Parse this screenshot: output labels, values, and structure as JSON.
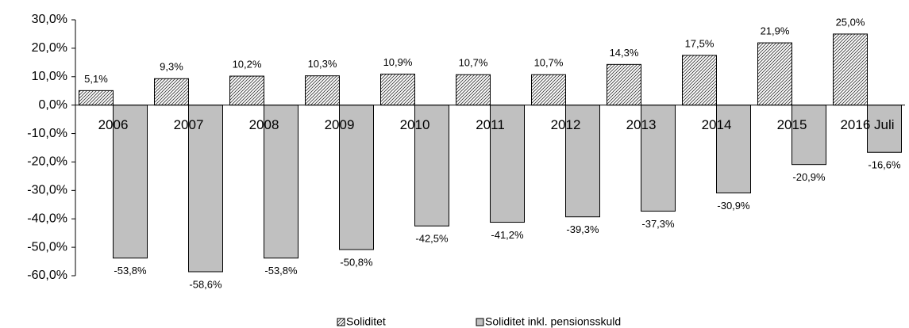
{
  "chart_data": {
    "type": "bar",
    "categories": [
      "2006",
      "2007",
      "2008",
      "2009",
      "2010",
      "2011",
      "2012",
      "2013",
      "2014",
      "2015",
      "2016 Juli"
    ],
    "series": [
      {
        "name": "Soliditet",
        "color": "#ffffff",
        "pattern": "diagonal-hatch",
        "values": [
          5.1,
          9.3,
          10.2,
          10.3,
          10.9,
          10.7,
          10.7,
          14.3,
          17.5,
          21.9,
          25.0
        ],
        "value_labels": [
          "5,1%",
          "9,3%",
          "10,2%",
          "10,3%",
          "10,9%",
          "10,7%",
          "10,7%",
          "14,3%",
          "17,5%",
          "21,9%",
          "25,0%"
        ]
      },
      {
        "name": "Soliditet inkl. pensionsskuld",
        "color": "#c0c0c0",
        "values": [
          -53.8,
          -58.6,
          -53.8,
          -50.8,
          -42.5,
          -41.2,
          -39.3,
          -37.3,
          -30.9,
          -20.9,
          -16.6
        ],
        "value_labels": [
          "-53,8%",
          "-58,6%",
          "-53,8%",
          "-50,8%",
          "-42,5%",
          "-41,2%",
          "-39,3%",
          "-37,3%",
          "-30,9%",
          "-20,9%",
          "-16,6%"
        ]
      }
    ],
    "ylim": [
      -60,
      30
    ],
    "yticks": [
      {
        "value": -60,
        "label": "-60,0%"
      },
      {
        "value": -50,
        "label": "-50,0%"
      },
      {
        "value": -40,
        "label": "-40,0%"
      },
      {
        "value": -30,
        "label": "-30,0%"
      },
      {
        "value": -20,
        "label": "-20,0%"
      },
      {
        "value": -10,
        "label": "-10,0%"
      },
      {
        "value": 0,
        "label": "0,0%"
      },
      {
        "value": 10,
        "label": "10,0%"
      },
      {
        "value": 20,
        "label": "20,0%"
      },
      {
        "value": 30,
        "label": "30,0%"
      }
    ],
    "grid": false,
    "legend": "bottom"
  }
}
